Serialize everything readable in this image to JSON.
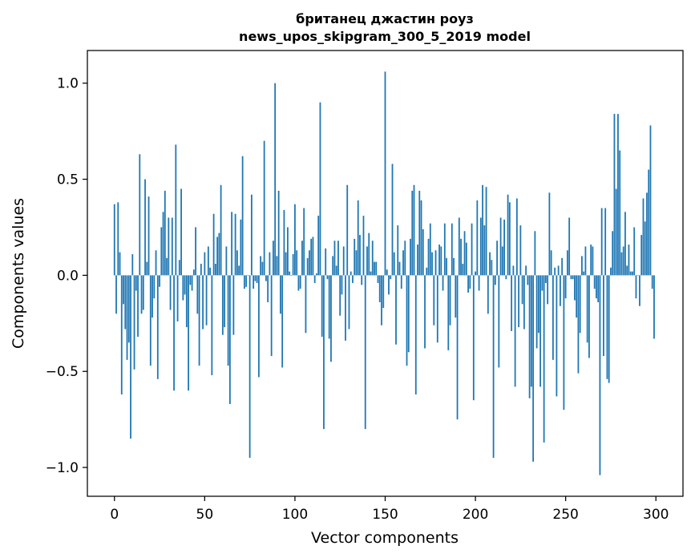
{
  "chart_data": {
    "type": "bar",
    "title": "британец джастин роуз\nnews_upos_skipgram_300_5_2019 model",
    "xlabel": "Vector components",
    "ylabel": "Components values",
    "xlim": [
      -15,
      315
    ],
    "ylim": [
      -1.15,
      1.17
    ],
    "xticks": [
      0,
      50,
      100,
      150,
      200,
      250,
      300
    ],
    "yticks": [
      -1.0,
      -0.5,
      0.0,
      0.5,
      1.0
    ],
    "ytick_labels": [
      "−1.0",
      "−0.5",
      "0.0",
      "0.5",
      "1.0"
    ],
    "grid": false,
    "bar_color": "#1f77b4",
    "x": [
      0,
      1,
      2,
      3,
      4,
      5,
      6,
      7,
      8,
      9,
      10,
      11,
      12,
      13,
      14,
      15,
      16,
      17,
      18,
      19,
      20,
      21,
      22,
      23,
      24,
      25,
      26,
      27,
      28,
      29,
      30,
      31,
      32,
      33,
      34,
      35,
      36,
      37,
      38,
      39,
      40,
      41,
      42,
      43,
      44,
      45,
      46,
      47,
      48,
      49,
      50,
      51,
      52,
      53,
      54,
      55,
      56,
      57,
      58,
      59,
      60,
      61,
      62,
      63,
      64,
      65,
      66,
      67,
      68,
      69,
      70,
      71,
      72,
      73,
      74,
      75,
      76,
      77,
      78,
      79,
      80,
      81,
      82,
      83,
      84,
      85,
      86,
      87,
      88,
      89,
      90,
      91,
      92,
      93,
      94,
      95,
      96,
      97,
      98,
      99,
      100,
      101,
      102,
      103,
      104,
      105,
      106,
      107,
      108,
      109,
      110,
      111,
      112,
      113,
      114,
      115,
      116,
      117,
      118,
      119,
      120,
      121,
      122,
      123,
      124,
      125,
      126,
      127,
      128,
      129,
      130,
      131,
      132,
      133,
      134,
      135,
      136,
      137,
      138,
      139,
      140,
      141,
      142,
      143,
      144,
      145,
      146,
      147,
      148,
      149,
      150,
      151,
      152,
      153,
      154,
      155,
      156,
      157,
      158,
      159,
      160,
      161,
      162,
      163,
      164,
      165,
      166,
      167,
      168,
      169,
      170,
      171,
      172,
      173,
      174,
      175,
      176,
      177,
      178,
      179,
      180,
      181,
      182,
      183,
      184,
      185,
      186,
      187,
      188,
      189,
      190,
      191,
      192,
      193,
      194,
      195,
      196,
      197,
      198,
      199,
      200,
      201,
      202,
      203,
      204,
      205,
      206,
      207,
      208,
      209,
      210,
      211,
      212,
      213,
      214,
      215,
      216,
      217,
      218,
      219,
      220,
      221,
      222,
      223,
      224,
      225,
      226,
      227,
      228,
      229,
      230,
      231,
      232,
      233,
      234,
      235,
      236,
      237,
      238,
      239,
      240,
      241,
      242,
      243,
      244,
      245,
      246,
      247,
      248,
      249,
      250,
      251,
      252,
      253,
      254,
      255,
      256,
      257,
      258,
      259,
      260,
      261,
      262,
      263,
      264,
      265,
      266,
      267,
      268,
      269,
      270,
      271,
      272,
      273,
      274,
      275,
      276,
      277,
      278,
      279,
      280,
      281,
      282,
      283,
      284,
      285,
      286,
      287,
      288,
      289,
      290,
      291,
      292,
      293,
      294,
      295,
      296,
      297,
      298,
      299
    ],
    "values": [
      0.37,
      -0.2,
      0.38,
      0.12,
      -0.62,
      -0.15,
      -0.28,
      -0.44,
      -0.35,
      -0.85,
      0.11,
      -0.49,
      -0.08,
      -0.32,
      0.63,
      -0.2,
      -0.18,
      0.5,
      0.07,
      0.41,
      -0.47,
      -0.22,
      -0.12,
      0.13,
      -0.54,
      -0.06,
      0.25,
      0.33,
      0.44,
      0.09,
      0.3,
      -0.18,
      0.3,
      -0.6,
      0.68,
      -0.24,
      0.08,
      0.45,
      -0.13,
      -0.1,
      -0.27,
      -0.6,
      -0.05,
      -0.08,
      0.03,
      0.25,
      -0.2,
      -0.47,
      0.06,
      -0.28,
      0.12,
      -0.26,
      0.15,
      0.04,
      -0.52,
      0.32,
      0.06,
      0.2,
      0.22,
      0.47,
      -0.31,
      -0.27,
      0.15,
      -0.47,
      -0.67,
      0.33,
      -0.31,
      0.32,
      0.13,
      0.05,
      0.29,
      0.62,
      -0.07,
      -0.06,
      0.0,
      -0.95,
      0.42,
      -0.07,
      -0.03,
      -0.04,
      -0.53,
      0.1,
      0.07,
      0.7,
      -0.03,
      -0.14,
      0.12,
      -0.42,
      0.18,
      1.0,
      0.1,
      0.44,
      -0.2,
      -0.48,
      0.34,
      0.12,
      0.25,
      0.02,
      0.0,
      0.11,
      0.37,
      0.13,
      -0.08,
      -0.07,
      0.18,
      0.35,
      -0.3,
      0.09,
      0.13,
      0.19,
      0.2,
      -0.04,
      0.01,
      0.31,
      0.9,
      -0.32,
      -0.8,
      0.14,
      -0.02,
      -0.33,
      -0.45,
      0.1,
      0.18,
      0.05,
      0.18,
      -0.21,
      -0.1,
      0.15,
      -0.34,
      0.47,
      -0.28,
      0.02,
      -0.04,
      0.19,
      0.13,
      0.39,
      0.21,
      -0.05,
      0.31,
      -0.8,
      0.15,
      0.22,
      0.02,
      0.18,
      0.07,
      0.07,
      -0.04,
      -0.14,
      -0.26,
      -0.17,
      1.06,
      0.03,
      -0.1,
      -0.02,
      0.58,
      0.12,
      -0.36,
      0.26,
      0.07,
      -0.07,
      0.13,
      0.18,
      -0.47,
      -0.4,
      0.19,
      0.44,
      0.47,
      -0.62,
      0.16,
      0.44,
      0.39,
      0.24,
      -0.38,
      0.04,
      0.19,
      0.27,
      0.12,
      -0.26,
      0.13,
      -0.35,
      0.16,
      0.15,
      -0.08,
      0.27,
      0.09,
      -0.39,
      -0.26,
      0.27,
      0.09,
      -0.22,
      -0.75,
      0.3,
      0.19,
      0.06,
      0.23,
      0.17,
      -0.09,
      -0.07,
      0.27,
      -0.65,
      0.02,
      0.39,
      -0.08,
      0.3,
      0.47,
      0.26,
      0.46,
      -0.2,
      0.12,
      0.08,
      -0.95,
      -0.05,
      0.18,
      -0.48,
      0.3,
      0.15,
      0.29,
      -0.02,
      0.42,
      0.38,
      -0.29,
      0.05,
      -0.58,
      0.4,
      -0.27,
      0.26,
      -0.15,
      -0.28,
      0.05,
      -0.05,
      -0.64,
      -0.58,
      -0.97,
      0.23,
      -0.38,
      -0.3,
      -0.58,
      -0.08,
      -0.87,
      -0.04,
      -0.15,
      0.43,
      0.13,
      -0.44,
      0.04,
      -0.63,
      0.05,
      -0.16,
      0.09,
      -0.7,
      -0.12,
      0.13,
      0.3,
      -0.02,
      -0.02,
      -0.13,
      -0.22,
      -0.51,
      -0.3,
      0.1,
      0.02,
      0.15,
      -0.35,
      -0.43,
      0.16,
      0.15,
      -0.07,
      -0.12,
      -0.14,
      -1.04,
      0.35,
      -0.42,
      0.35,
      -0.54,
      -0.56,
      0.04,
      0.23,
      0.84,
      0.45,
      0.84,
      0.65,
      0.12,
      0.15,
      0.33,
      0.05,
      0.16,
      0.02,
      0.02,
      0.25,
      -0.12,
      0.0,
      -0.16,
      0.21,
      0.4,
      0.28,
      0.43,
      0.55,
      0.78,
      -0.07,
      -0.33
    ]
  }
}
